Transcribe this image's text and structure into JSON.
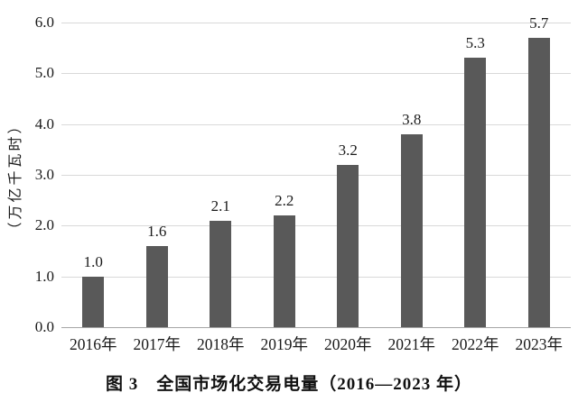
{
  "chart_data": {
    "type": "bar",
    "title": "图 3　全国市场化交易电量（2016—2023 年）",
    "categories": [
      "2016年",
      "2017年",
      "2018年",
      "2019年",
      "2020年",
      "2021年",
      "2022年",
      "2023年"
    ],
    "values": [
      1.0,
      1.6,
      2.1,
      2.2,
      3.2,
      3.8,
      5.3,
      5.7
    ],
    "value_labels": [
      "1.0",
      "1.6",
      "2.1",
      "2.2",
      "3.2",
      "3.8",
      "5.3",
      "5.7"
    ],
    "xlabel": "",
    "ylabel": "（万亿千瓦时）",
    "ylim": [
      0,
      6
    ],
    "ytick_labels": [
      "0.0",
      "1.0",
      "2.0",
      "3.0",
      "4.0",
      "5.0",
      "6.0"
    ],
    "grid": true,
    "legend": "none",
    "colors": {
      "bar": "#595959",
      "gridline": "#d9d9d9",
      "axis_line": "#a6a6a6",
      "text": "#1a1a1a"
    }
  },
  "figure": {
    "caption": "图 3　全国市场化交易电量（2016—2023 年）"
  }
}
